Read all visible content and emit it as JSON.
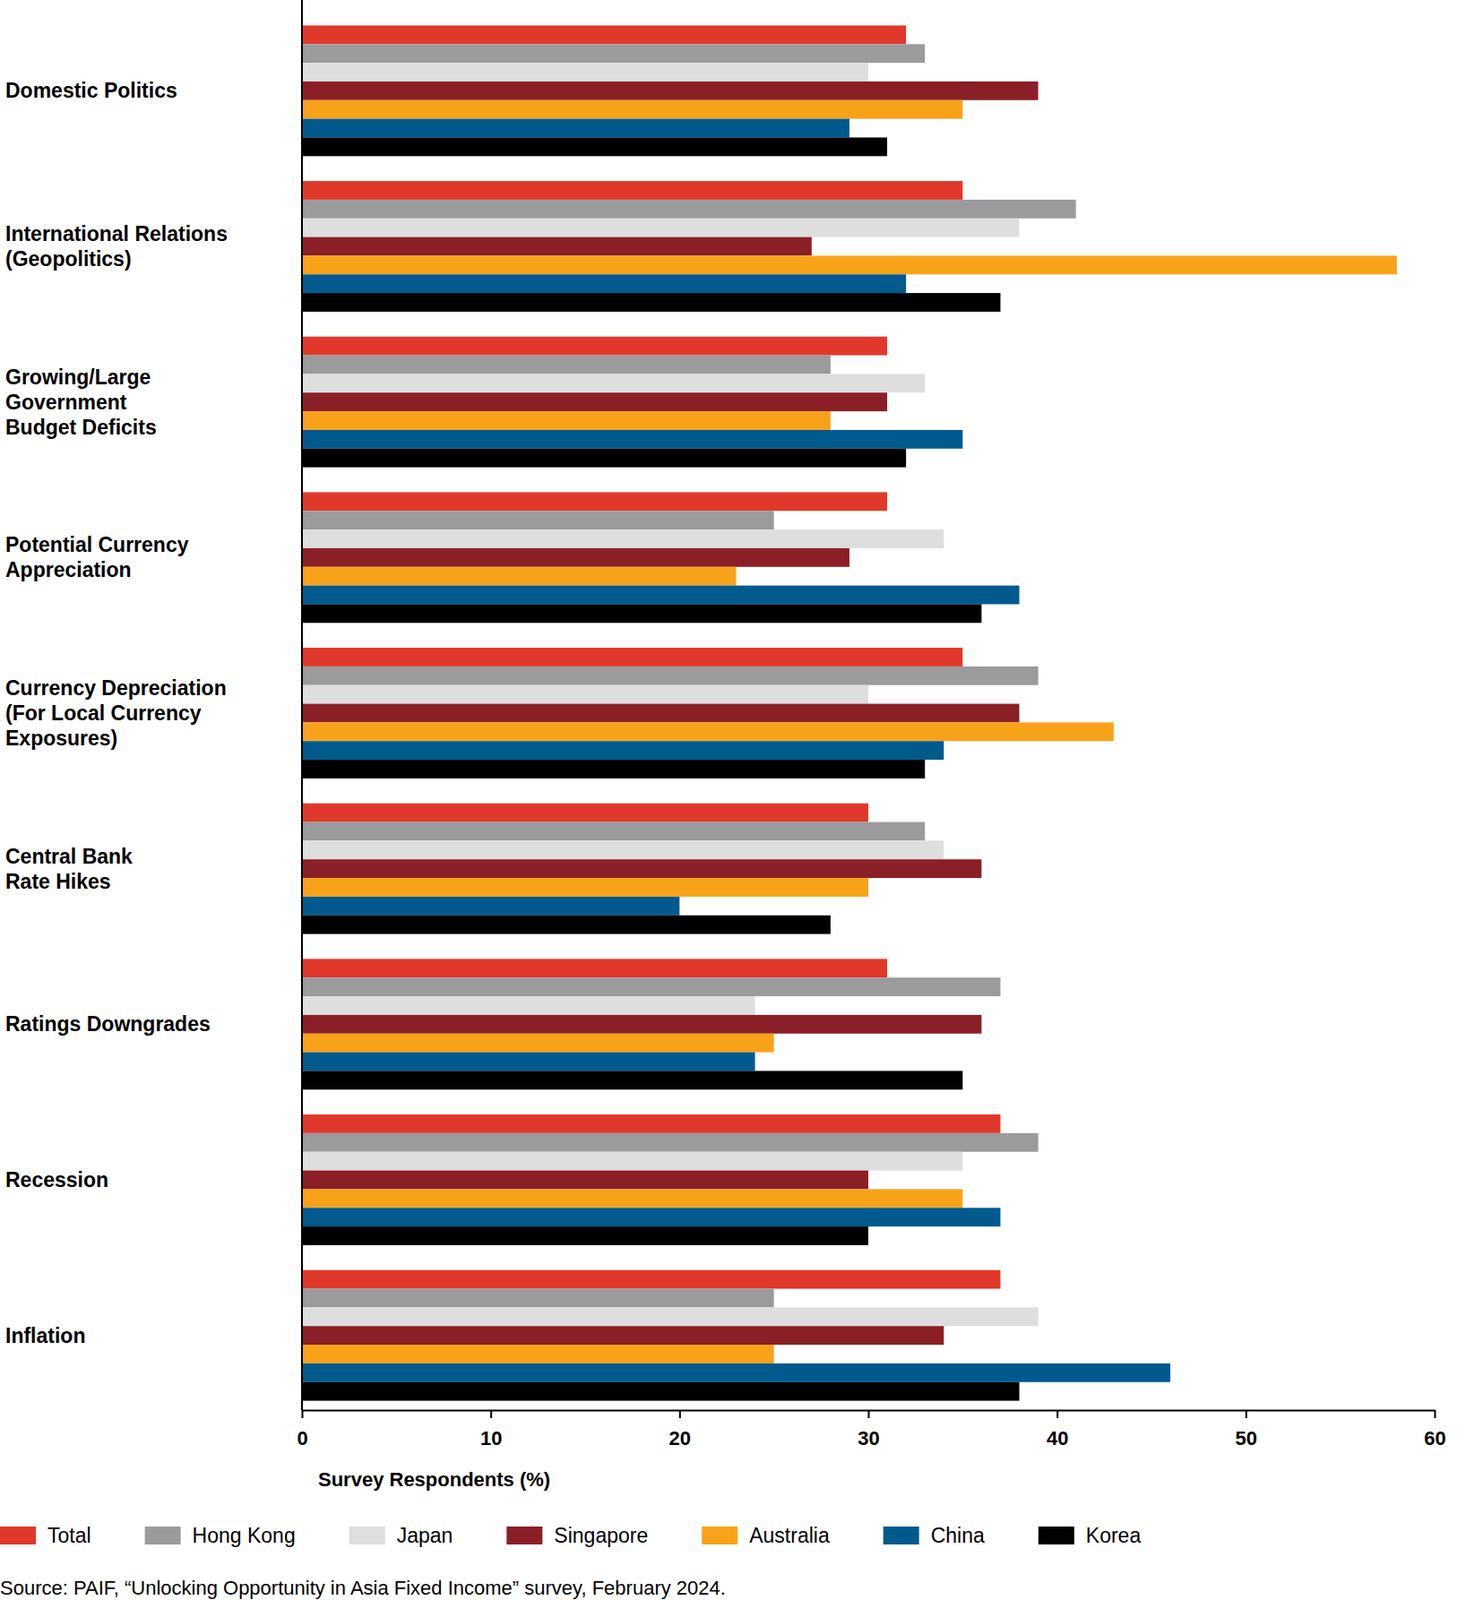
{
  "chart_data": {
    "type": "bar",
    "orientation": "horizontal",
    "categories": [
      "Domestic Politics",
      "International Relations\n(Geopolitics)",
      "Growing/Large\nGovernment\nBudget Deficits",
      "Potential Currency\nAppreciation",
      "Currency Depreciation\n(For Local Currency\nExposures)",
      "Central Bank\nRate Hikes",
      "Ratings Downgrades",
      "Recession",
      "Inflation"
    ],
    "series": [
      {
        "name": "Total",
        "color": "#e0392b",
        "values": [
          32,
          35,
          31,
          31,
          35,
          30,
          31,
          37,
          37
        ]
      },
      {
        "name": "Hong Kong",
        "color": "#9b9b9d",
        "values": [
          33,
          41,
          28,
          25,
          39,
          33,
          37,
          39,
          25
        ]
      },
      {
        "name": "Japan",
        "color": "#dedede",
        "values": [
          30,
          38,
          33,
          34,
          30,
          34,
          24,
          35,
          39
        ]
      },
      {
        "name": "Singapore",
        "color": "#8a1f28",
        "values": [
          39,
          27,
          31,
          29,
          38,
          36,
          36,
          30,
          34
        ]
      },
      {
        "name": "Australia",
        "color": "#f8a21a",
        "values": [
          35,
          58,
          28,
          23,
          43,
          30,
          25,
          35,
          25
        ]
      },
      {
        "name": "China",
        "color": "#015a8e",
        "values": [
          29,
          32,
          35,
          38,
          34,
          20,
          24,
          37,
          46
        ]
      },
      {
        "name": "Korea",
        "color": "#000000",
        "values": [
          31,
          37,
          32,
          36,
          33,
          28,
          35,
          30,
          38
        ]
      }
    ],
    "xlim": [
      0,
      60
    ],
    "xticks": [
      0,
      10,
      20,
      30,
      40,
      50,
      60
    ],
    "x_label": "Survey Respondents (%)",
    "grid": false,
    "legend": "bottom",
    "source": "Source: PAIF, “Unlocking Opportunity in Asia Fixed Income” survey, February 2024."
  }
}
